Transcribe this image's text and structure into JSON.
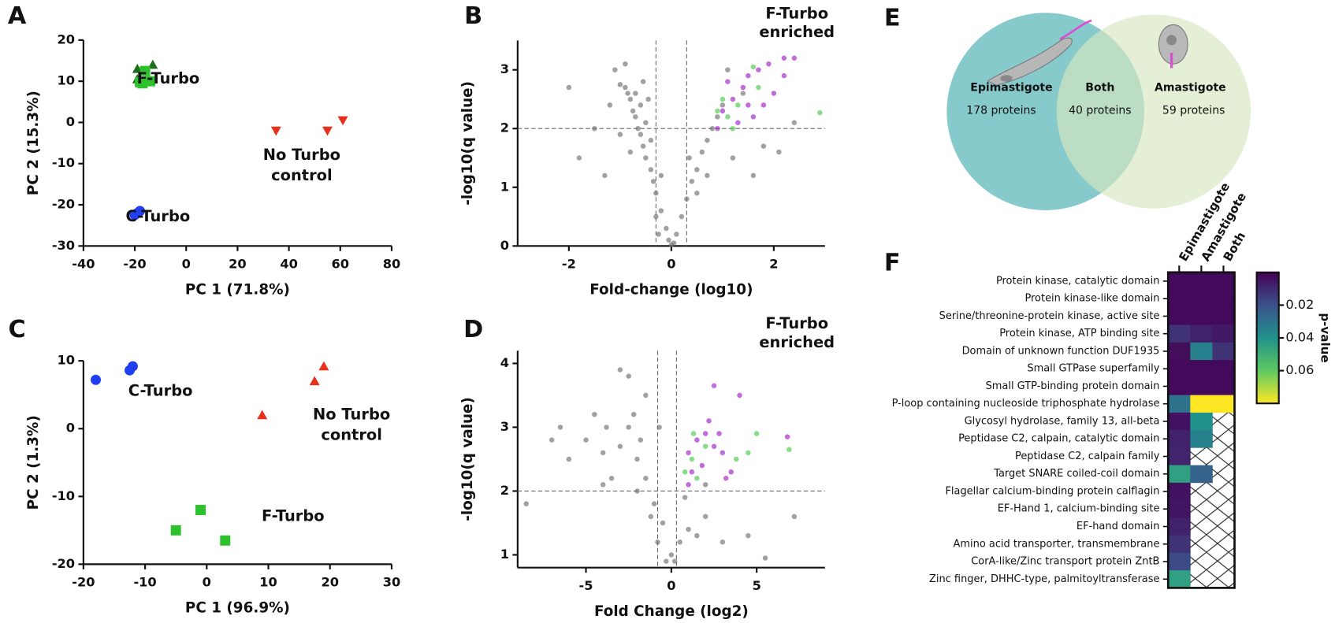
{
  "chart_data": [
    {
      "type": "scatter",
      "label": "A",
      "xlabel": "PC 1 (71.8%)",
      "ylabel": "PC 2 (15.3%)",
      "xlim": [
        -40,
        80
      ],
      "ylim": [
        -30,
        20
      ],
      "xticks": [
        -40,
        -20,
        0,
        20,
        40,
        60,
        80
      ],
      "yticks": [
        -30,
        -20,
        -10,
        0,
        10,
        20
      ],
      "series": [
        {
          "color": "#1b6e1b",
          "marker": "triangle",
          "x": [
            -19,
            -13,
            -19
          ],
          "values": [
            13,
            14,
            10.5
          ]
        },
        {
          "color": "#2dc22d",
          "marker": "square",
          "x": [
            -16,
            -17,
            -14,
            -18
          ],
          "values": [
            12.5,
            9.5,
            10,
            9.8
          ]
        },
        {
          "color": "#e8301c",
          "marker": "triangle-down",
          "x": [
            35,
            55,
            61
          ],
          "values": [
            -2,
            -2,
            0.5
          ]
        },
        {
          "color": "#1f3ff0",
          "marker": "circle",
          "x": [
            -20,
            -18,
            -19
          ],
          "values": [
            -22.5,
            -21.5,
            -22
          ]
        }
      ],
      "annotations": [
        {
          "text": "F-Turbo",
          "x": -7,
          "y": 10.5
        },
        {
          "text": "No Turbo",
          "x": 45,
          "y": -8
        },
        {
          "text": "control",
          "x": 45,
          "y": -13
        },
        {
          "text": "C-Turbo",
          "x": -11,
          "y": -23
        }
      ]
    },
    {
      "type": "scatter",
      "label": "B",
      "xlabel": "Fold-change (log10)",
      "ylabel": "-log10(q value)",
      "title_lines": [
        "F-Turbo",
        "enriched"
      ],
      "xlim": [
        -3,
        3
      ],
      "ylim": [
        0,
        3.5
      ],
      "xticks": [
        -2,
        0,
        2
      ],
      "yticks": [
        0,
        1,
        2,
        3
      ],
      "thresholds": {
        "x": [
          -0.3,
          0.3
        ],
        "y": 2
      },
      "series": [
        {
          "color": "#6e6e6e",
          "marker": "dot",
          "x": [
            -0.1,
            -0.2,
            -0.3,
            -0.35,
            -0.4,
            -0.5,
            -0.55,
            -0.6,
            -0.65,
            -0.7,
            -0.75,
            -0.8,
            -0.85,
            -0.9,
            -1.0,
            -0.7,
            -0.6,
            -0.5,
            -0.4,
            -1.2,
            -1.5,
            -1.8,
            -1.3,
            -0.9,
            -1.1,
            -2.0,
            -1.0,
            -0.8,
            -0.3,
            -0.2,
            -0.45,
            -0.55,
            -0.25,
            0.1,
            0.2,
            0.3,
            0.4,
            0.5,
            0.6,
            0.7,
            0.8,
            0.9,
            1.0,
            0.5,
            0.7,
            1.2,
            1.6,
            1.8,
            2.1,
            1.4,
            1.1,
            2.4,
            0.35,
            0.05,
            -0.05,
            0
          ],
          "values": [
            0.3,
            0.6,
            0.9,
            1.1,
            1.3,
            1.5,
            1.7,
            1.9,
            2.0,
            2.2,
            2.3,
            2.5,
            2.6,
            2.7,
            2.75,
            2.6,
            2.4,
            2.1,
            1.8,
            2.4,
            2.0,
            1.5,
            1.2,
            3.1,
            3.0,
            2.7,
            1.9,
            1.6,
            0.5,
            1.2,
            2.5,
            2.8,
            0.2,
            0.2,
            0.5,
            0.8,
            1.1,
            1.3,
            1.6,
            1.8,
            2.0,
            2.2,
            2.4,
            0.9,
            1.2,
            1.5,
            1.2,
            1.7,
            1.6,
            2.6,
            3.0,
            2.1,
            1.5,
            0.05,
            0.1,
            0.02
          ]
        },
        {
          "color": "#a020c8",
          "marker": "dot",
          "x": [
            1.0,
            1.2,
            1.4,
            1.5,
            1.7,
            1.9,
            2.2,
            2.4,
            1.3,
            1.6,
            2.0,
            1.8,
            1.1,
            2.2,
            0.9,
            1.5
          ],
          "values": [
            2.3,
            2.5,
            2.7,
            2.9,
            3.0,
            3.1,
            3.2,
            3.2,
            2.1,
            2.2,
            2.6,
            2.4,
            2.8,
            2.9,
            2.0,
            2.4
          ]
        },
        {
          "color": "#4cc94c",
          "marker": "dot",
          "x": [
            0.9,
            1.1,
            1.3,
            1.6,
            1.0,
            2.9,
            1.7,
            1.2
          ],
          "values": [
            2.3,
            2.2,
            2.4,
            3.05,
            2.5,
            2.27,
            2.7,
            2.0
          ]
        }
      ]
    },
    {
      "type": "scatter",
      "label": "C",
      "xlabel": "PC 1 (96.9%)",
      "ylabel": "PC 2 (1.3%)",
      "xlim": [
        -20,
        30
      ],
      "ylim": [
        -20,
        10
      ],
      "xticks": [
        -20,
        -10,
        0,
        10,
        20,
        30
      ],
      "yticks": [
        -20,
        -10,
        0,
        10
      ],
      "series": [
        {
          "color": "#1f3ff0",
          "marker": "circle",
          "x": [
            -18,
            -12.5,
            -12
          ],
          "values": [
            7.2,
            8.6,
            9.2
          ]
        },
        {
          "color": "#e8301c",
          "marker": "triangle",
          "x": [
            9,
            17.5,
            19
          ],
          "values": [
            2,
            7,
            9.2
          ]
        },
        {
          "color": "#2dc22d",
          "marker": "square",
          "x": [
            -5,
            -1,
            3
          ],
          "values": [
            -15,
            -12,
            -16.5
          ]
        }
      ],
      "annotations": [
        {
          "text": "C-Turbo",
          "x": -7.5,
          "y": 5.5
        },
        {
          "text": "No Turbo",
          "x": 23.5,
          "y": 2
        },
        {
          "text": "control",
          "x": 23.5,
          "y": -1
        },
        {
          "text": "F-Turbo",
          "x": 14,
          "y": -13
        }
      ]
    },
    {
      "type": "scatter",
      "label": "D",
      "xlabel": "Fold Change (log2)",
      "ylabel": "-log10(q value)",
      "title_lines": [
        "F-Turbo",
        "enriched"
      ],
      "xlim": [
        -9,
        9
      ],
      "ylim": [
        0.8,
        4.2
      ],
      "xticks": [
        -5,
        0,
        5
      ],
      "yticks": [
        1,
        2,
        3,
        4
      ],
      "thresholds": {
        "x": [
          -0.8,
          0.3
        ],
        "y": 2
      },
      "series": [
        {
          "color": "#6e6e6e",
          "marker": "dot",
          "x": [
            -2,
            -3,
            -4,
            -2.5,
            -3.5,
            -1.5,
            -1,
            -0.5,
            0,
            -0.3,
            0.5,
            1,
            1.5,
            -5,
            -6,
            -4.5,
            -2.5,
            -3,
            -1.5,
            -2,
            -1.2,
            -0.8,
            0.2,
            0.8,
            2,
            3,
            -7,
            -8.5,
            -6.5,
            -2.2,
            -3.8,
            -4,
            -1.8,
            -0.7,
            2,
            7.2,
            5.5,
            4.5
          ],
          "values": [
            2.5,
            2.7,
            2.6,
            3.0,
            2.2,
            2.2,
            1.8,
            1.5,
            1.0,
            0.9,
            1.2,
            1.4,
            1.3,
            2.8,
            2.5,
            3.2,
            3.8,
            3.9,
            3.5,
            2.0,
            1.6,
            1.2,
            0.9,
            1.9,
            1.6,
            1.2,
            2.8,
            1.8,
            3.0,
            3.2,
            3.0,
            2.1,
            2.8,
            3.0,
            2.1,
            1.6,
            0.95,
            1.3
          ]
        },
        {
          "color": "#a020c8",
          "marker": "dot",
          "x": [
            1,
            1.5,
            2,
            2.5,
            3,
            3.5,
            2.2,
            1.2,
            4,
            2.5,
            1.8,
            3.2,
            6.8,
            2.8,
            1.0
          ],
          "values": [
            2.6,
            2.8,
            2.9,
            2.7,
            2.6,
            2.3,
            3.1,
            2.3,
            3.5,
            3.65,
            2.4,
            2.2,
            2.85,
            2.9,
            2.1
          ]
        },
        {
          "color": "#4cc94c",
          "marker": "dot",
          "x": [
            1.2,
            1.5,
            2,
            0.8,
            4.5,
            6.9,
            3.8,
            5,
            1.3
          ],
          "values": [
            2.5,
            2.2,
            2.7,
            2.3,
            2.6,
            2.65,
            2.5,
            2.9,
            2.9
          ]
        }
      ]
    },
    {
      "type": "venn",
      "label": "E",
      "sets": [
        {
          "name": "Epimastigote",
          "count": "178 proteins"
        },
        {
          "name": "Both",
          "count": "40 proteins"
        },
        {
          "name": "Amastigote",
          "count": "59 proteins"
        }
      ]
    },
    {
      "type": "heatmap",
      "label": "F",
      "colormap": "viridis",
      "clim": [
        0,
        0.08
      ],
      "cbar_ticks": [
        0.02,
        0.04,
        0.06
      ],
      "cbar_label": "p-value",
      "columns": [
        "Epimastigote",
        "Amastigote",
        "Both"
      ],
      "rows": [
        "Protein kinase, catalytic domain",
        "Protein kinase-like domain",
        "Serine/threonine-protein kinase, active site",
        "Protein kinase, ATP binding site",
        "Domain of unknown function DUF1935",
        "Small GTPase superfamily",
        "Small GTP-binding protein domain",
        "P-loop containing nucleoside triphosphate hydrolase",
        "Glycosyl hydrolase, family 13, all-beta",
        "Peptidase C2, calpain, catalytic domain",
        "Peptidase C2, calpain family",
        "Target SNARE coiled-coil domain",
        "Flagellar calcium-binding protein calflagin",
        "EF-Hand 1, calcium-binding site",
        "EF-hand domain",
        "Amino acid transporter, transmembrane",
        "CorA-like/Zinc transport protein ZntB",
        "Zinc finger, DHHC-type, palmitoyltransferase"
      ],
      "values": [
        [
          0.002,
          0.002,
          0.002
        ],
        [
          0.002,
          0.002,
          0.002
        ],
        [
          0.002,
          0.002,
          0.002
        ],
        [
          0.012,
          0.008,
          0.006
        ],
        [
          0.003,
          0.035,
          0.012
        ],
        [
          0.002,
          0.002,
          0.002
        ],
        [
          0.002,
          0.002,
          0.002
        ],
        [
          0.03,
          0.08,
          0.08
        ],
        [
          0.004,
          0.04,
          null
        ],
        [
          0.008,
          0.035,
          null
        ],
        [
          0.009,
          null,
          null
        ],
        [
          0.045,
          0.025,
          null
        ],
        [
          0.004,
          null,
          null
        ],
        [
          0.005,
          null,
          null
        ],
        [
          0.008,
          null,
          null
        ],
        [
          0.012,
          null,
          null
        ],
        [
          0.018,
          null,
          null
        ],
        [
          0.045,
          null,
          null
        ]
      ]
    }
  ]
}
